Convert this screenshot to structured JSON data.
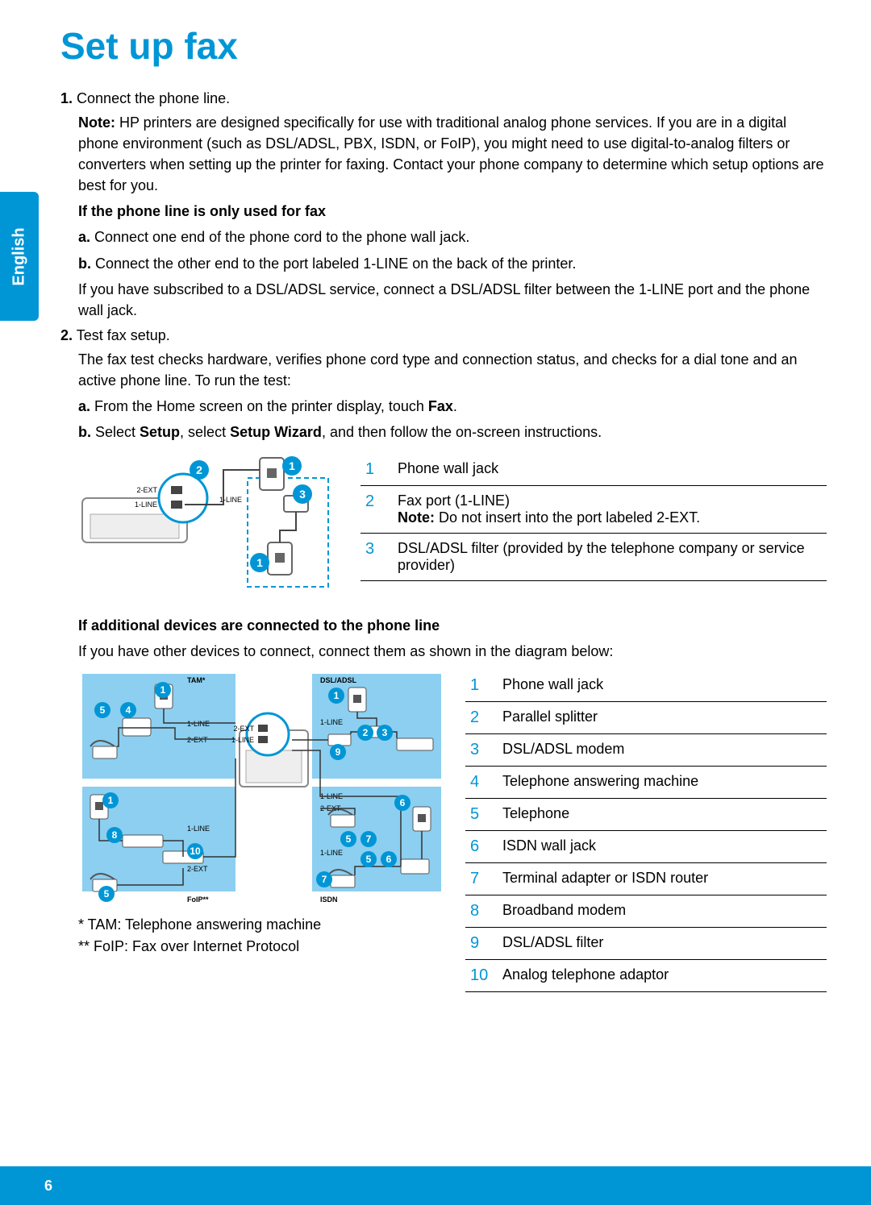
{
  "colors": {
    "accent": "#0096d6",
    "diagram_bg": "#8ccff0",
    "diagram_dark": "#3a3a3a",
    "text": "#000000",
    "white": "#ffffff"
  },
  "title": "Set up fax",
  "language_tab": "English",
  "page_number": "6",
  "step1": {
    "num": "1.",
    "text": "Connect the phone line.",
    "note_label": "Note:",
    "note": " HP printers are designed specifically for use with traditional analog phone services. If you are in a digital phone environment (such as DSL/ADSL, PBX, ISDN, or FoIP), you might need to use digital-to-analog filters or converters when setting up the printer for faxing. Contact your phone company to determine which setup options are best for you.",
    "sub1_heading": "If the phone line is only used for fax",
    "a_label": "a.",
    "a_text": " Connect one end of the phone cord to the phone wall jack.",
    "b_label": "b.",
    "b_text": " Connect the other end to the port labeled 1-LINE on the back of the printer.",
    "dsl_note": "If you have subscribed to a DSL/ADSL service, connect a DSL/ADSL filter between the 1-LINE port and the phone wall jack."
  },
  "step2": {
    "num": "2.",
    "text": "Test fax setup.",
    "desc": "The fax test checks hardware, verifies phone cord type and connection status, and checks for a dial tone and an active phone line. To run the test:",
    "a_label": "a.",
    "a_text_pre": " From the Home screen on the printer display, touch ",
    "a_text_bold": "Fax",
    "a_text_post": ".",
    "b_label": "b.",
    "b_text_pre": " Select ",
    "b_text_b1": "Setup",
    "b_text_mid": ", select ",
    "b_text_b2": "Setup Wizard",
    "b_text_post": ", and then follow the on-screen instructions."
  },
  "legend1": [
    {
      "n": "1",
      "text": "Phone wall jack",
      "note": ""
    },
    {
      "n": "2",
      "text": "Fax port (1-LINE)",
      "note_label": "Note:",
      "note": " Do not insert into the port labeled 2-EXT."
    },
    {
      "n": "3",
      "text": "DSL/ADSL filter (provided by the telephone company or service provider)",
      "note": ""
    }
  ],
  "section2_heading": "If additional devices are connected to the phone line",
  "section2_intro": "If you have other devices to connect, connect them as shown in the diagram below:",
  "legend2": [
    {
      "n": "1",
      "text": "Phone wall jack"
    },
    {
      "n": "2",
      "text": "Parallel splitter"
    },
    {
      "n": "3",
      "text": "DSL/ADSL modem"
    },
    {
      "n": "4",
      "text": "Telephone answering machine"
    },
    {
      "n": "5",
      "text": "Telephone"
    },
    {
      "n": "6",
      "text": "ISDN wall jack"
    },
    {
      "n": "7",
      "text": "Terminal adapter or ISDN router"
    },
    {
      "n": "8",
      "text": "Broadband modem"
    },
    {
      "n": "9",
      "text": "DSL/ADSL filter"
    },
    {
      "n": "10",
      "text": "Analog telephone adaptor"
    }
  ],
  "footnote1": "*  TAM: Telephone answering machine",
  "footnote2": "** FoIP: Fax over Internet Protocol",
  "diag1_labels": {
    "ext": "2-EXT",
    "line": "1-LINE"
  },
  "diag2_labels": {
    "tam": "TAM*",
    "foip": "FoIP**",
    "dsl": "DSL/ADSL",
    "isdn": "ISDN",
    "line": "1-LINE",
    "ext": "2-EXT"
  }
}
